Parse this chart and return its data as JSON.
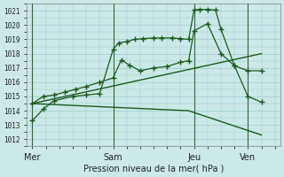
{
  "background_color": "#cce8e8",
  "grid_color": "#99cccc",
  "line_color": "#1a5c1a",
  "title": "Pression niveau de la mer( hPa )",
  "ylim": [
    1011.5,
    1021.5
  ],
  "yticks": [
    1012,
    1013,
    1014,
    1015,
    1016,
    1017,
    1018,
    1019,
    1020,
    1021
  ],
  "xtick_labels": [
    "Mer",
    "Sam",
    "Jeu",
    "Ven"
  ],
  "xtick_positions": [
    0,
    3,
    6,
    8
  ],
  "xlim": [
    -0.2,
    9.2
  ],
  "vline_color": "#336633",
  "line1_x": [
    0,
    0.4,
    0.8,
    1.5,
    2.0,
    2.5,
    3.0,
    3.2,
    3.5,
    3.8,
    4.1,
    4.5,
    4.8,
    5.2,
    5.5,
    5.8,
    6.0,
    6.2,
    6.5,
    6.8,
    7.0,
    7.5,
    8.0,
    8.5
  ],
  "line1_y": [
    1013.3,
    1014.1,
    1014.7,
    1015.0,
    1015.1,
    1015.2,
    1018.3,
    1018.75,
    1018.85,
    1019.0,
    1019.05,
    1019.1,
    1019.1,
    1019.1,
    1019.05,
    1019.0,
    1021.05,
    1021.1,
    1021.1,
    1021.05,
    1019.7,
    1017.15,
    1016.8,
    1016.8
  ],
  "line2_x": [
    0,
    0.4,
    0.8,
    1.2,
    1.6,
    2.0,
    2.5,
    3.0,
    3.3,
    3.6,
    4.0,
    4.5,
    5.0,
    5.5,
    5.8,
    6.0,
    6.5,
    7.0,
    7.5,
    8.0,
    8.5
  ],
  "line2_y": [
    1014.5,
    1015.0,
    1015.1,
    1015.3,
    1015.5,
    1015.7,
    1016.0,
    1016.3,
    1017.55,
    1017.2,
    1016.8,
    1017.0,
    1017.1,
    1017.4,
    1017.5,
    1019.6,
    1020.1,
    1018.0,
    1017.15,
    1015.0,
    1014.6
  ],
  "line3_x": [
    0,
    8.5
  ],
  "line3_y": [
    1014.5,
    1018.0
  ],
  "line4_x": [
    0,
    5.8,
    8.5
  ],
  "line4_y": [
    1014.5,
    1014.0,
    1012.3
  ]
}
